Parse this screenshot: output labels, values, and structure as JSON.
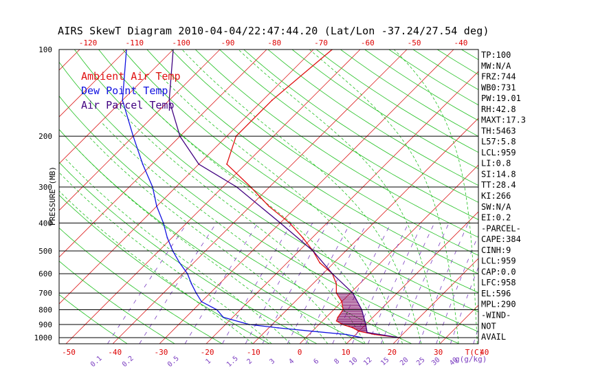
{
  "title": "AIRS SkewT Diagram 2010-04-04/22:47:44.20 (Lat/Lon -37.24/27.54 deg)",
  "chart_data": {
    "type": "line",
    "title": "AIRS SkewT Diagram 2010-04-04/22:47:44.20 (Lat/Lon -37.24/27.54 deg)",
    "ylabel": "PRESSURE (MB)",
    "y_scale": "log",
    "ylim": [
      1050,
      100
    ],
    "pressure_ticks": [
      1000,
      900,
      800,
      700,
      600,
      500,
      400,
      300,
      200,
      100
    ],
    "top_axis_labels": [
      -120,
      -110,
      -100,
      -90,
      -80,
      -70,
      -60,
      -50,
      -40
    ],
    "bottom_axis_labels": [
      -50,
      -40,
      -30,
      -20,
      -10,
      0,
      10,
      20,
      30,
      40
    ],
    "bottom_axis_unit": "T(C)",
    "mixing_ratio_labels": [
      "0.1",
      "0.2",
      "0.5",
      "1",
      "1.5",
      "2",
      "3",
      "4",
      "6",
      "8",
      "10",
      "12",
      "15",
      "20",
      "25",
      "30",
      "40"
    ],
    "mixing_ratio_unit": "g(g/kg)",
    "legend": [
      {
        "label": "Ambient Air Temp",
        "color": "#e01010"
      },
      {
        "label": "Dew Point Temp",
        "color": "#1010e0"
      },
      {
        "label": "Air Parcel Temp",
        "color": "#400080"
      }
    ],
    "series": [
      {
        "name": "Ambient Air Temp",
        "color": "#e01010",
        "points": [
          [
            1000,
            20
          ],
          [
            975,
            14
          ],
          [
            950,
            10
          ],
          [
            925,
            8
          ],
          [
            900,
            5
          ],
          [
            875,
            3
          ],
          [
            850,
            2.5
          ],
          [
            800,
            2
          ],
          [
            750,
            0
          ],
          [
            700,
            -3
          ],
          [
            650,
            -5
          ],
          [
            600,
            -8
          ],
          [
            550,
            -13
          ],
          [
            500,
            -17
          ],
          [
            450,
            -22
          ],
          [
            400,
            -28
          ],
          [
            350,
            -36
          ],
          [
            300,
            -44
          ],
          [
            250,
            -54
          ],
          [
            200,
            -58
          ],
          [
            150,
            -58
          ],
          [
            100,
            -56
          ]
        ]
      },
      {
        "name": "Dew Point Temp",
        "color": "#1010e0",
        "points": [
          [
            1000,
            12
          ],
          [
            975,
            8
          ],
          [
            950,
            0
          ],
          [
            925,
            -8
          ],
          [
            900,
            -15
          ],
          [
            850,
            -22
          ],
          [
            800,
            -25
          ],
          [
            750,
            -30
          ],
          [
            700,
            -33
          ],
          [
            650,
            -36
          ],
          [
            600,
            -39
          ],
          [
            550,
            -43
          ],
          [
            500,
            -47
          ],
          [
            450,
            -51
          ],
          [
            400,
            -55
          ],
          [
            350,
            -60
          ],
          [
            300,
            -65
          ],
          [
            250,
            -72
          ],
          [
            200,
            -80
          ],
          [
            150,
            -90
          ],
          [
            100,
            -100
          ]
        ]
      },
      {
        "name": "Air Parcel Temp",
        "color": "#400080",
        "points": [
          [
            1000,
            20
          ],
          [
            959,
            12
          ],
          [
            900,
            10
          ],
          [
            800,
            6
          ],
          [
            700,
            0.5
          ],
          [
            600,
            -8
          ],
          [
            500,
            -17
          ],
          [
            400,
            -30
          ],
          [
            300,
            -47
          ],
          [
            250,
            -60
          ],
          [
            200,
            -70
          ],
          [
            150,
            -80
          ],
          [
            100,
            -90
          ]
        ]
      }
    ],
    "cape_region_pressure": [
      958,
      700
    ],
    "stats": [
      "TP:100",
      "MW:N/A",
      "FRZ:744",
      "WB0:731",
      "PW:19.01",
      "RH:42.8",
      "MAXT:17.3",
      "TH:5463",
      "L57:5.8",
      "LCL:959",
      "LI:0.8",
      "SI:14.8",
      "TT:28.4",
      "KI:266",
      "SW:N/A",
      "EI:0.2",
      "-PARCEL-",
      "CAPE:384",
      "CINH:9",
      "LCL:959",
      "CAP:0.0",
      "LFC:958",
      "EL:596",
      "MPL:290",
      "-WIND-",
      "NOT",
      "AVAIL"
    ]
  }
}
